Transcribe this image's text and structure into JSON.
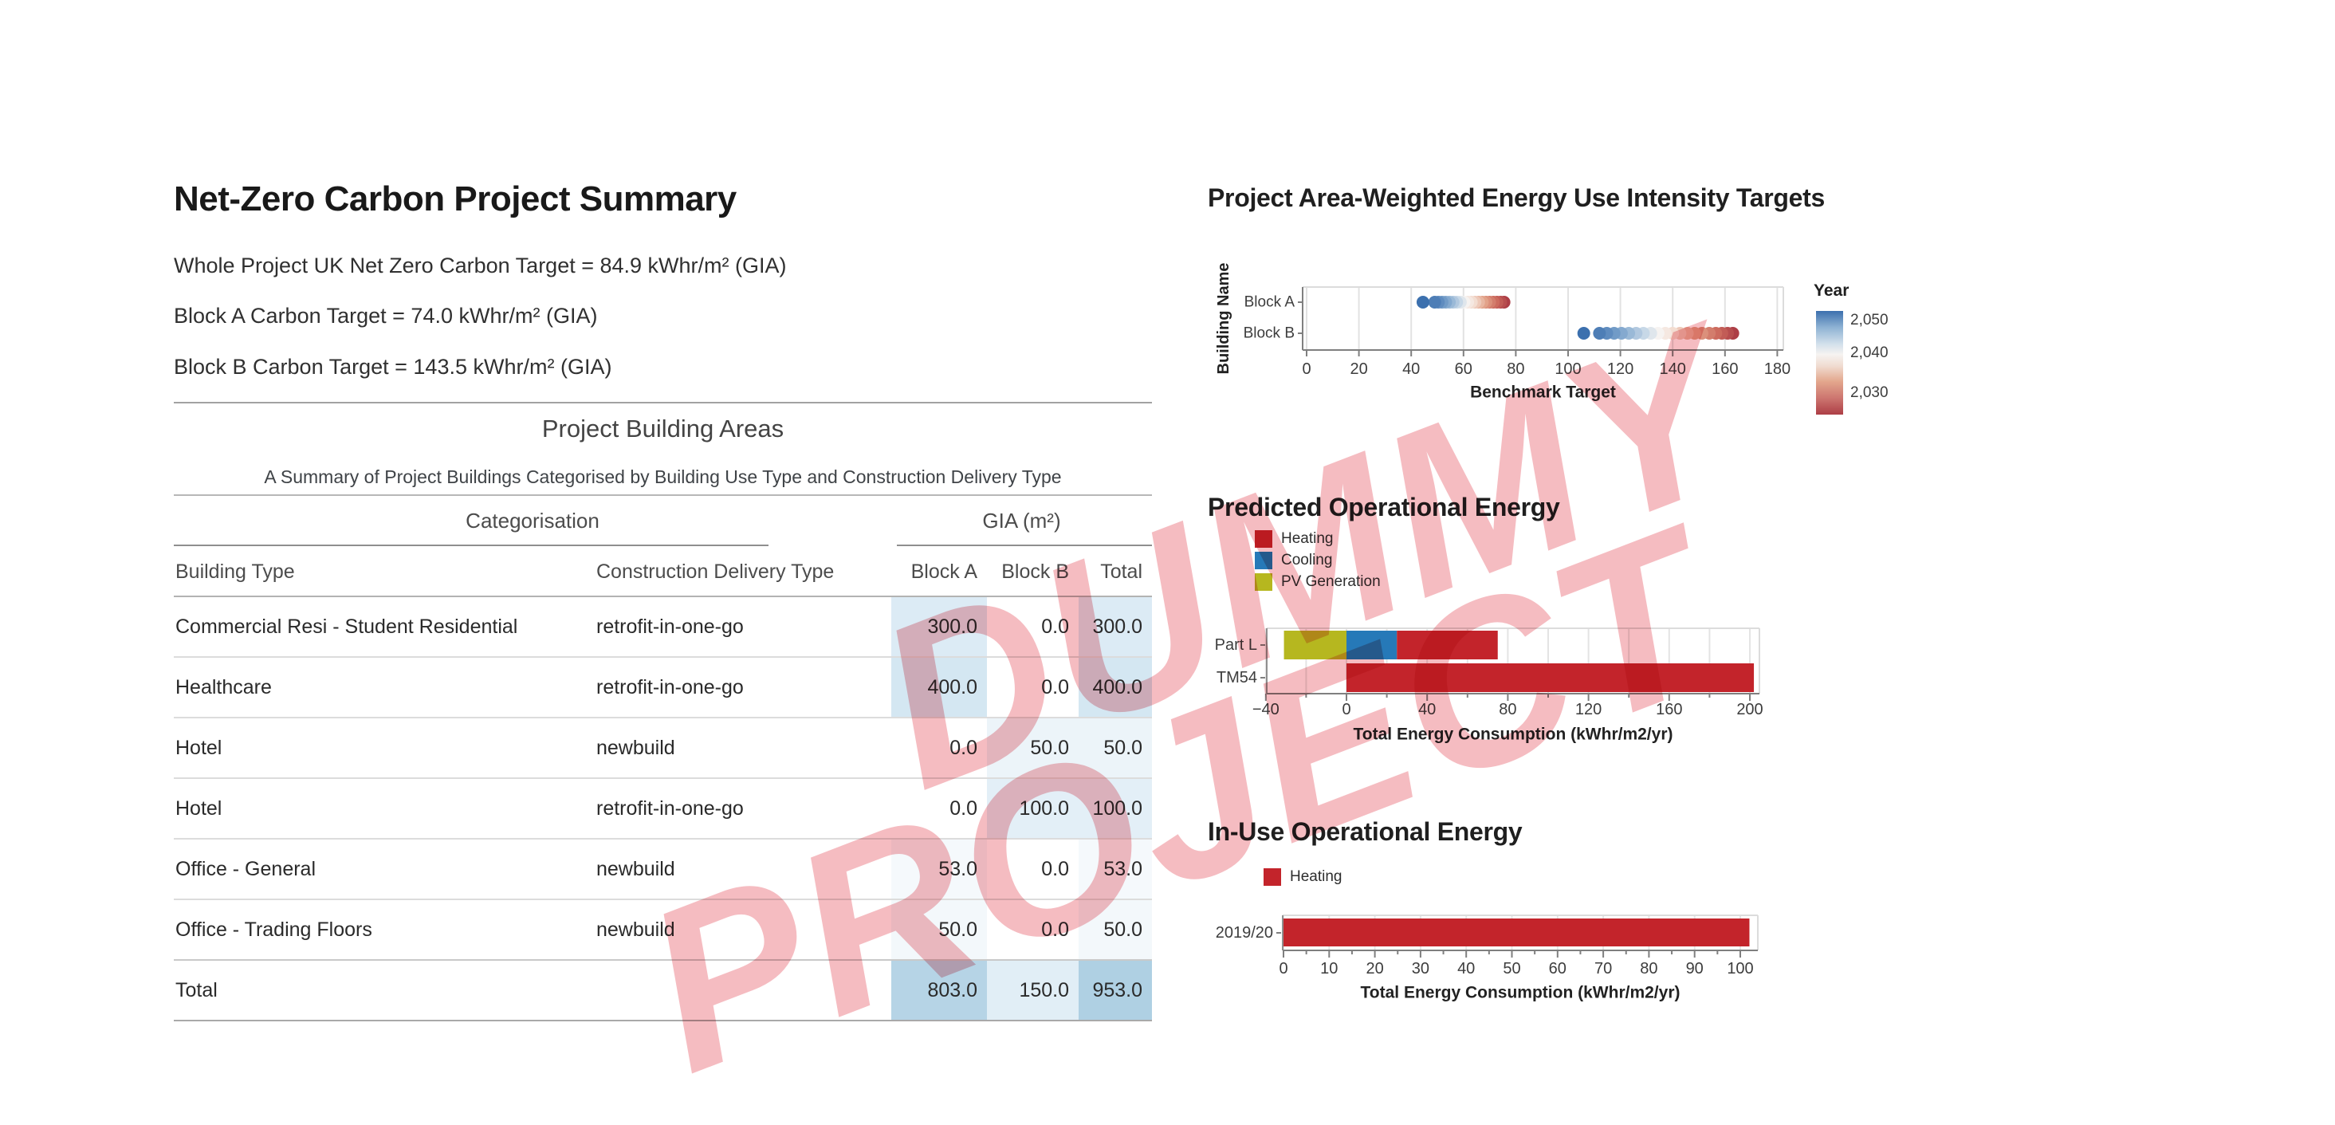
{
  "summary": {
    "title": "Net-Zero Carbon Project Summary",
    "lines": [
      "Whole Project UK Net Zero Carbon Target = 84.9 kWhr/m² (GIA)",
      "Block A Carbon Target = 74.0 kWhr/m² (GIA)",
      "Block B Carbon Target = 143.5 kWhr/m² (GIA)"
    ]
  },
  "table": {
    "title": "Project Building Areas",
    "subtitle": "A Summary of Project Buildings Categorised by Building Use Type and Construction Delivery Type",
    "spanners": {
      "categorisation": "Categorisation",
      "gia": "GIA (m²)"
    },
    "columns": [
      "Building Type",
      "Construction Delivery Type",
      "Block A",
      "Block B",
      "Total"
    ],
    "rows": [
      {
        "cells": [
          "Commercial Resi - Student Residential",
          "retrofit-in-one-go",
          "300.0",
          "0.0",
          "300.0"
        ],
        "bg": [
          "",
          "",
          "#dcebf5",
          "",
          "#dcebf5"
        ]
      },
      {
        "cells": [
          "Healthcare",
          "retrofit-in-one-go",
          "400.0",
          "0.0",
          "400.0"
        ],
        "bg": [
          "",
          "",
          "#d4e7f2",
          "",
          "#d4e7f2"
        ]
      },
      {
        "cells": [
          "Hotel",
          "newbuild",
          "0.0",
          "50.0",
          "50.0"
        ],
        "bg": [
          "",
          "",
          "",
          "#ecf4f9",
          "#ecf4f9"
        ]
      },
      {
        "cells": [
          "Hotel",
          "retrofit-in-one-go",
          "0.0",
          "100.0",
          "100.0"
        ],
        "bg": [
          "",
          "",
          "",
          "#e3eff7",
          "#e3eff7"
        ]
      },
      {
        "cells": [
          "Office - General",
          "newbuild",
          "53.0",
          "0.0",
          "53.0"
        ],
        "bg": [
          "",
          "",
          "#f5f9fc",
          "",
          "#f5f9fc"
        ]
      },
      {
        "cells": [
          "Office - Trading Floors",
          "newbuild",
          "50.0",
          "0.0",
          "50.0"
        ],
        "bg": [
          "",
          "",
          "#f3f8fb",
          "",
          "#f3f8fb"
        ]
      }
    ],
    "total_row": {
      "cells": [
        "Total",
        "",
        "803.0",
        "150.0",
        "953.0"
      ],
      "bg": [
        "",
        "",
        "#b6d4e6",
        "#e1eef6",
        "#afd0e3"
      ]
    }
  },
  "chart_data": [
    {
      "type": "scatter",
      "title": "Project Area-Weighted Energy Use Intensity Targets",
      "xlabel": "Benchmark Target",
      "ylabel": "Building Name",
      "categories": [
        "Block A",
        "Block B"
      ],
      "xlim": [
        0,
        180
      ],
      "xtick_values": [
        0,
        20,
        40,
        60,
        80,
        100,
        120,
        140,
        160,
        180
      ],
      "xtick_labels": [
        "0",
        "20",
        "40",
        "60",
        "80",
        "100",
        "120",
        "140",
        "160",
        "180"
      ],
      "grid": true,
      "years": [
        2050,
        2049,
        2048,
        2047,
        2046,
        2045,
        2044,
        2043,
        2042,
        2041,
        2040,
        2039,
        2038,
        2037,
        2036,
        2035,
        2034,
        2033,
        2032,
        2031,
        2030
      ],
      "series": [
        {
          "name": "Block A",
          "values": [
            44.5,
            49.0,
            50.4,
            51.8,
            53.2,
            54.6,
            56.0,
            57.4,
            58.8,
            60.2,
            61.6,
            63.0,
            64.4,
            65.8,
            67.2,
            68.6,
            70.0,
            71.4,
            72.8,
            74.2,
            75.5
          ]
        },
        {
          "name": "Block B",
          "values": [
            106.0,
            112.0,
            114.8,
            117.6,
            120.4,
            123.2,
            126.0,
            128.8,
            131.6,
            134.4,
            137.2,
            140.0,
            142.8,
            145.6,
            148.4,
            151.2,
            154.0,
            156.5,
            158.8,
            161.0,
            163.0
          ]
        }
      ],
      "colorbar": {
        "title": "Year",
        "tick_labels": [
          "2,050",
          "2,040",
          "2,030"
        ],
        "color_high": "#3c70ae",
        "color_mid": "#f6f3f1",
        "color_low": "#ad3e46"
      }
    },
    {
      "type": "bar",
      "title": "Predicted Operational Energy",
      "xlabel": "Total Energy Consumption (kWhr/m2/yr)",
      "categories": [
        "Part L",
        "TM54"
      ],
      "xlim": [
        -40,
        204
      ],
      "xtick_values": [
        -40,
        0,
        40,
        80,
        120,
        160,
        200
      ],
      "xtick_labels": [
        "−40",
        "0",
        "40",
        "80",
        "120",
        "160",
        "200"
      ],
      "grid": true,
      "legend": [
        {
          "label": "Heating",
          "color": "#c3242b"
        },
        {
          "label": "Cooling",
          "color": "#2679b8"
        },
        {
          "label": "PV Generation",
          "color": "#b6b71f"
        }
      ],
      "bars": [
        {
          "category": "Part L",
          "segments": [
            {
              "name": "PV Generation",
              "from": -31,
              "to": 0,
              "color": "#b6b71f"
            },
            {
              "name": "Cooling",
              "from": 0,
              "to": 25,
              "color": "#2679b8"
            },
            {
              "name": "Heating",
              "from": 25,
              "to": 75,
              "color": "#c3242b"
            }
          ]
        },
        {
          "category": "TM54",
          "segments": [
            {
              "name": "Heating",
              "from": 0,
              "to": 202,
              "color": "#c3242b"
            }
          ]
        }
      ]
    },
    {
      "type": "bar",
      "title": "In-Use Operational Energy",
      "xlabel": "Total Energy Consumption (kWhr/m2/yr)",
      "categories": [
        "2019/20"
      ],
      "xlim": [
        0,
        104
      ],
      "xtick_values": [
        0,
        10,
        20,
        30,
        40,
        50,
        60,
        70,
        80,
        90,
        100
      ],
      "xtick_labels": [
        "0",
        "10",
        "20",
        "30",
        "40",
        "50",
        "60",
        "70",
        "80",
        "90",
        "100"
      ],
      "grid": false,
      "legend": [
        {
          "label": "Heating",
          "color": "#c3242b"
        }
      ],
      "bars": [
        {
          "category": "2019/20",
          "segments": [
            {
              "name": "Heating",
              "from": 0,
              "to": 102,
              "color": "#c3242b"
            }
          ]
        }
      ]
    }
  ],
  "watermark": {
    "line1": "DUMMY",
    "line2": "PROJECT"
  }
}
